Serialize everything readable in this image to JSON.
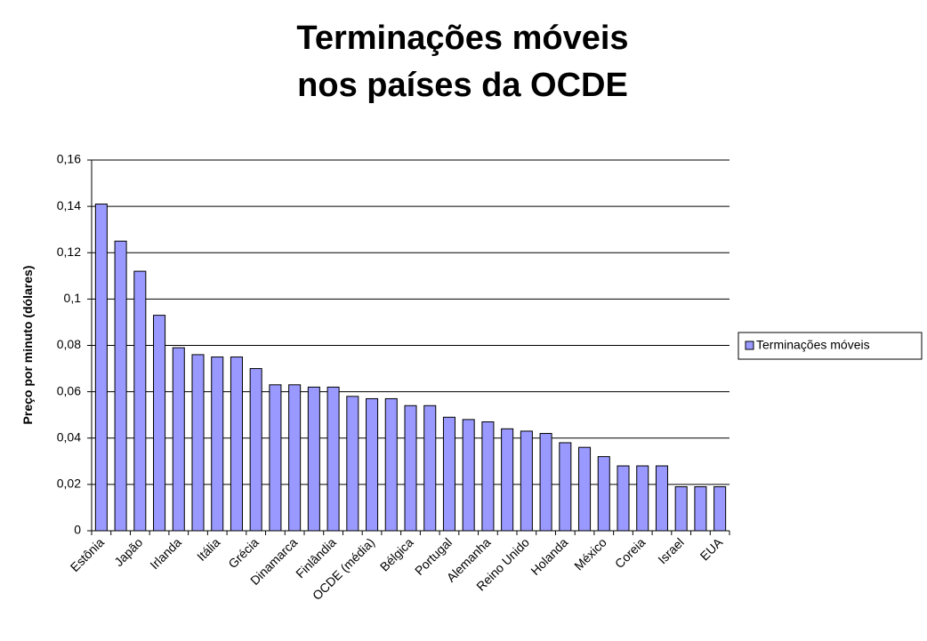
{
  "chart_data": {
    "type": "bar",
    "title_lines": [
      "Terminações móveis",
      "nos países da OCDE"
    ],
    "y_label": "Preço por minuto (dólares)",
    "categories": [
      "Estônia",
      null,
      "Japão",
      null,
      "Irlanda",
      null,
      "Itália",
      null,
      "Grécia",
      null,
      "Dinamarca",
      null,
      "Finlândia",
      null,
      "OCDE (média)",
      null,
      "Bélgica",
      null,
      "Portugal",
      null,
      "Alemanha",
      null,
      "Reino Unido",
      null,
      "Holanda",
      null,
      "México",
      null,
      "Coreia",
      null,
      "Israel",
      null,
      "EUA"
    ],
    "series": [
      {
        "name": "Terminações móveis",
        "color": "#9999ff",
        "values": [
          0.141,
          0.125,
          0.112,
          0.093,
          0.079,
          0.076,
          0.075,
          0.075,
          0.07,
          0.063,
          0.063,
          0.062,
          0.062,
          0.058,
          0.057,
          0.057,
          0.054,
          0.054,
          0.049,
          0.048,
          0.047,
          0.044,
          0.043,
          0.042,
          0.038,
          0.036,
          0.032,
          0.028,
          0.028,
          0.028,
          0.019,
          0.019,
          0.019
        ]
      }
    ],
    "ylim": [
      0,
      0.16
    ],
    "yticks": [
      0,
      {
        "value": 0.02,
        "label": "0,02"
      },
      {
        "value": 0.04,
        "label": "0,04"
      },
      {
        "value": 0.06,
        "label": "0,06"
      },
      {
        "value": 0.08,
        "label": "0,08"
      },
      {
        "value": 0.1,
        "label": "0,1"
      },
      {
        "value": 0.12,
        "label": "0,12"
      },
      {
        "value": 0.14,
        "label": "0,14"
      },
      {
        "value": 0.16,
        "label": "0,16"
      }
    ],
    "grid": true,
    "legend": "right"
  }
}
